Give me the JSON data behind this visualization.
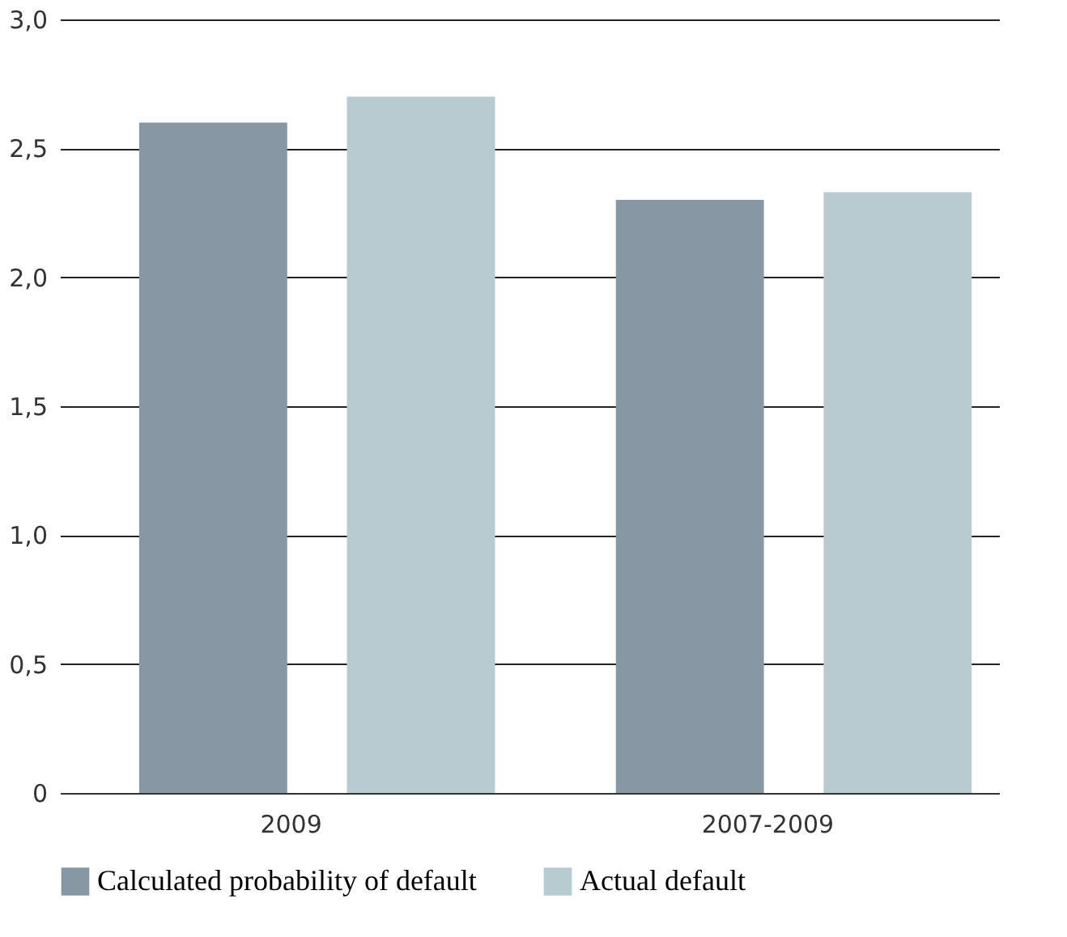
{
  "chart_data": {
    "type": "bar",
    "categories": [
      "2009",
      "2007-2009"
    ],
    "series": [
      {
        "name": "Calculated probability of default",
        "color": "#8798a4",
        "values": [
          2.6,
          2.3
        ]
      },
      {
        "name": "Actual default",
        "color": "#b7cbd0",
        "values": [
          2.7,
          2.33
        ]
      }
    ],
    "ylim": [
      0,
      3.0
    ],
    "yticks": [
      {
        "value": 0,
        "label": "0"
      },
      {
        "value": 0.5,
        "label": "0,5"
      },
      {
        "value": 1.0,
        "label": "1,0"
      },
      {
        "value": 1.5,
        "label": "1,5"
      },
      {
        "value": 2.0,
        "label": "2,0"
      },
      {
        "value": 2.5,
        "label": "2,5"
      },
      {
        "value": 3.0,
        "label": "3,0"
      }
    ],
    "grid": "y",
    "legend": "bottom"
  }
}
